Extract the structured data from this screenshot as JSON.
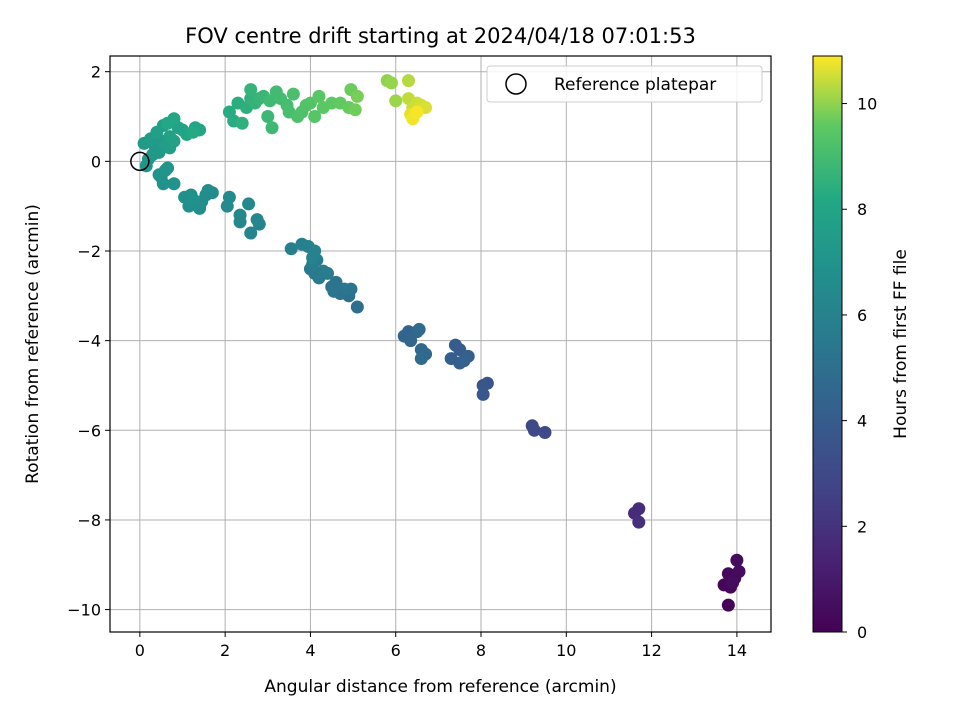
{
  "chart_data": {
    "type": "scatter",
    "title": "FOV centre drift starting at 2024/04/18 07:01:53",
    "xlabel": "Angular distance from reference (arcmin)",
    "ylabel": "Rotation from reference (arcmin)",
    "xlim": [
      -0.7,
      14.8
    ],
    "ylim": [
      -10.5,
      2.35
    ],
    "xticks": [
      0,
      2,
      4,
      6,
      8,
      10,
      12,
      14
    ],
    "yticks": [
      -10,
      -8,
      -6,
      -4,
      -2,
      0,
      2
    ],
    "xtick_labels": [
      "0",
      "2",
      "4",
      "6",
      "8",
      "10",
      "12",
      "14"
    ],
    "ytick_labels": [
      "−10",
      "−8",
      "−6",
      "−4",
      "−2",
      "0",
      "2"
    ],
    "grid": true,
    "colormap": "viridis",
    "colorbar": {
      "label": "Hours from first FF file",
      "range": [
        0,
        10.9
      ],
      "ticks": [
        0,
        2,
        4,
        6,
        8,
        10
      ],
      "tick_labels": [
        "0",
        "2",
        "4",
        "6",
        "8",
        "10"
      ]
    },
    "legend": {
      "position": "top-right",
      "entries": [
        "Reference platepar"
      ]
    },
    "reference_point": {
      "x": 0,
      "y": 0
    },
    "points": [
      {
        "x": 13.8,
        "y": -9.9,
        "t": 0.1
      },
      {
        "x": 13.7,
        "y": -9.45,
        "t": 0.2
      },
      {
        "x": 13.85,
        "y": -9.5,
        "t": 0.25
      },
      {
        "x": 13.8,
        "y": -9.2,
        "t": 0.3
      },
      {
        "x": 13.95,
        "y": -9.3,
        "t": 0.35
      },
      {
        "x": 14.0,
        "y": -8.9,
        "t": 0.4
      },
      {
        "x": 14.05,
        "y": -9.15,
        "t": 0.45
      },
      {
        "x": 13.9,
        "y": -9.4,
        "t": 0.5
      },
      {
        "x": 11.6,
        "y": -7.85,
        "t": 1.7
      },
      {
        "x": 11.7,
        "y": -7.75,
        "t": 1.8
      },
      {
        "x": 11.7,
        "y": -8.05,
        "t": 1.9
      },
      {
        "x": 9.2,
        "y": -5.9,
        "t": 3.0
      },
      {
        "x": 9.25,
        "y": -6.0,
        "t": 3.05
      },
      {
        "x": 9.5,
        "y": -6.05,
        "t": 3.1
      },
      {
        "x": 8.05,
        "y": -5.0,
        "t": 3.6
      },
      {
        "x": 8.15,
        "y": -4.95,
        "t": 3.65
      },
      {
        "x": 8.05,
        "y": -5.2,
        "t": 3.7
      },
      {
        "x": 7.4,
        "y": -4.1,
        "t": 4.0
      },
      {
        "x": 7.5,
        "y": -4.2,
        "t": 4.05
      },
      {
        "x": 7.3,
        "y": -4.4,
        "t": 4.1
      },
      {
        "x": 7.5,
        "y": -4.5,
        "t": 4.15
      },
      {
        "x": 7.7,
        "y": -4.35,
        "t": 4.2
      },
      {
        "x": 7.6,
        "y": -4.45,
        "t": 4.25
      },
      {
        "x": 6.3,
        "y": -3.8,
        "t": 4.4
      },
      {
        "x": 6.2,
        "y": -3.9,
        "t": 4.45
      },
      {
        "x": 6.35,
        "y": -4.0,
        "t": 4.5
      },
      {
        "x": 6.5,
        "y": -3.8,
        "t": 4.55
      },
      {
        "x": 6.6,
        "y": -4.2,
        "t": 4.6
      },
      {
        "x": 6.7,
        "y": -4.3,
        "t": 4.65
      },
      {
        "x": 6.6,
        "y": -4.4,
        "t": 4.7
      },
      {
        "x": 6.55,
        "y": -3.75,
        "t": 4.75
      },
      {
        "x": 5.1,
        "y": -3.25,
        "t": 5.0
      },
      {
        "x": 4.9,
        "y": -3.0,
        "t": 5.05
      },
      {
        "x": 4.7,
        "y": -2.95,
        "t": 5.1
      },
      {
        "x": 4.5,
        "y": -2.8,
        "t": 5.15
      },
      {
        "x": 4.6,
        "y": -2.7,
        "t": 5.2
      },
      {
        "x": 4.95,
        "y": -2.85,
        "t": 5.25
      },
      {
        "x": 4.8,
        "y": -2.85,
        "t": 5.3
      },
      {
        "x": 4.55,
        "y": -2.9,
        "t": 5.35
      },
      {
        "x": 4.1,
        "y": -2.5,
        "t": 5.45
      },
      {
        "x": 4.0,
        "y": -2.4,
        "t": 5.5
      },
      {
        "x": 4.2,
        "y": -2.6,
        "t": 5.55
      },
      {
        "x": 4.3,
        "y": -2.45,
        "t": 5.6
      },
      {
        "x": 4.15,
        "y": -2.2,
        "t": 5.65
      },
      {
        "x": 4.4,
        "y": -2.5,
        "t": 5.7
      },
      {
        "x": 4.05,
        "y": -2.3,
        "t": 5.75
      },
      {
        "x": 3.55,
        "y": -1.95,
        "t": 5.85
      },
      {
        "x": 3.8,
        "y": -1.85,
        "t": 5.9
      },
      {
        "x": 3.95,
        "y": -1.9,
        "t": 5.95
      },
      {
        "x": 4.1,
        "y": -2.0,
        "t": 6.0
      },
      {
        "x": 4.05,
        "y": -2.15,
        "t": 6.05
      },
      {
        "x": 2.6,
        "y": -1.6,
        "t": 6.15
      },
      {
        "x": 2.8,
        "y": -1.4,
        "t": 6.2
      },
      {
        "x": 2.75,
        "y": -1.3,
        "t": 6.25
      },
      {
        "x": 2.35,
        "y": -1.35,
        "t": 6.3
      },
      {
        "x": 2.35,
        "y": -1.2,
        "t": 6.35
      },
      {
        "x": 2.55,
        "y": -0.95,
        "t": 6.4
      },
      {
        "x": 2.05,
        "y": -1.0,
        "t": 6.45
      },
      {
        "x": 2.1,
        "y": -0.8,
        "t": 6.5
      },
      {
        "x": 1.7,
        "y": -0.7,
        "t": 6.55
      },
      {
        "x": 1.6,
        "y": -0.65,
        "t": 6.6
      },
      {
        "x": 1.55,
        "y": -0.75,
        "t": 6.65
      },
      {
        "x": 1.4,
        "y": -1.05,
        "t": 6.7
      },
      {
        "x": 1.45,
        "y": -0.9,
        "t": 6.72
      },
      {
        "x": 1.3,
        "y": -0.95,
        "t": 6.75
      },
      {
        "x": 1.15,
        "y": -1.0,
        "t": 6.78
      },
      {
        "x": 1.2,
        "y": -0.75,
        "t": 6.8
      },
      {
        "x": 1.05,
        "y": -0.8,
        "t": 6.83
      },
      {
        "x": 1.25,
        "y": -0.85,
        "t": 6.86
      },
      {
        "x": 0.8,
        "y": -0.5,
        "t": 6.9
      },
      {
        "x": 0.55,
        "y": -0.5,
        "t": 6.93
      },
      {
        "x": 0.5,
        "y": -0.35,
        "t": 6.96
      },
      {
        "x": 0.45,
        "y": -0.3,
        "t": 7.0
      },
      {
        "x": 0.6,
        "y": -0.2,
        "t": 7.05
      },
      {
        "x": 0.65,
        "y": -0.15,
        "t": 7.1
      },
      {
        "x": 0.15,
        "y": -0.1,
        "t": 7.15
      },
      {
        "x": 0.2,
        "y": 0.05,
        "t": 7.2
      },
      {
        "x": 0.3,
        "y": 0.15,
        "t": 7.25
      },
      {
        "x": 0.45,
        "y": 0.2,
        "t": 7.3
      },
      {
        "x": 0.35,
        "y": 0.35,
        "t": 7.35
      },
      {
        "x": 0.5,
        "y": 0.45,
        "t": 7.4
      },
      {
        "x": 0.1,
        "y": 0.4,
        "t": 7.45
      },
      {
        "x": 0.25,
        "y": 0.5,
        "t": 7.5
      },
      {
        "x": 0.6,
        "y": 0.35,
        "t": 7.55
      },
      {
        "x": 0.7,
        "y": 0.3,
        "t": 7.6
      },
      {
        "x": 0.4,
        "y": 0.65,
        "t": 7.65
      },
      {
        "x": 0.55,
        "y": 0.8,
        "t": 7.7
      },
      {
        "x": 0.7,
        "y": 0.55,
        "t": 7.75
      },
      {
        "x": 0.8,
        "y": 0.45,
        "t": 7.8
      },
      {
        "x": 0.9,
        "y": 0.75,
        "t": 7.85
      },
      {
        "x": 1.0,
        "y": 0.7,
        "t": 7.9
      },
      {
        "x": 1.1,
        "y": 0.6,
        "t": 7.95
      },
      {
        "x": 1.3,
        "y": 0.75,
        "t": 8.0
      },
      {
        "x": 1.4,
        "y": 0.7,
        "t": 8.05
      },
      {
        "x": 0.8,
        "y": 0.95,
        "t": 8.1
      },
      {
        "x": 0.65,
        "y": 0.85,
        "t": 8.15
      },
      {
        "x": 1.25,
        "y": 0.65,
        "t": 8.2
      },
      {
        "x": 2.1,
        "y": 1.1,
        "t": 8.3
      },
      {
        "x": 2.2,
        "y": 0.9,
        "t": 8.35
      },
      {
        "x": 2.3,
        "y": 1.3,
        "t": 8.4
      },
      {
        "x": 2.5,
        "y": 1.2,
        "t": 8.45
      },
      {
        "x": 2.4,
        "y": 0.85,
        "t": 8.5
      },
      {
        "x": 2.6,
        "y": 1.4,
        "t": 8.55
      },
      {
        "x": 2.7,
        "y": 1.3,
        "t": 8.6
      },
      {
        "x": 2.6,
        "y": 1.6,
        "t": 8.65
      },
      {
        "x": 2.8,
        "y": 1.4,
        "t": 8.7
      },
      {
        "x": 2.9,
        "y": 1.45,
        "t": 8.75
      },
      {
        "x": 3.0,
        "y": 1.0,
        "t": 8.8
      },
      {
        "x": 3.1,
        "y": 0.75,
        "t": 8.85
      },
      {
        "x": 3.05,
        "y": 1.35,
        "t": 8.9
      },
      {
        "x": 3.2,
        "y": 1.55,
        "t": 8.95
      },
      {
        "x": 3.3,
        "y": 1.4,
        "t": 9.0
      },
      {
        "x": 3.45,
        "y": 1.25,
        "t": 9.05
      },
      {
        "x": 3.5,
        "y": 1.1,
        "t": 9.1
      },
      {
        "x": 3.6,
        "y": 1.5,
        "t": 9.15
      },
      {
        "x": 3.7,
        "y": 1.0,
        "t": 9.2
      },
      {
        "x": 3.8,
        "y": 1.1,
        "t": 9.25
      },
      {
        "x": 3.9,
        "y": 1.25,
        "t": 9.3
      },
      {
        "x": 4.0,
        "y": 1.3,
        "t": 9.35
      },
      {
        "x": 4.1,
        "y": 1.0,
        "t": 9.4
      },
      {
        "x": 4.2,
        "y": 1.45,
        "t": 9.45
      },
      {
        "x": 4.3,
        "y": 1.2,
        "t": 9.5
      },
      {
        "x": 4.5,
        "y": 1.3,
        "t": 9.55
      },
      {
        "x": 4.7,
        "y": 1.3,
        "t": 9.6
      },
      {
        "x": 4.9,
        "y": 1.2,
        "t": 9.65
      },
      {
        "x": 4.95,
        "y": 1.6,
        "t": 9.7
      },
      {
        "x": 5.05,
        "y": 1.15,
        "t": 9.75
      },
      {
        "x": 5.1,
        "y": 1.45,
        "t": 9.8
      },
      {
        "x": 5.8,
        "y": 1.8,
        "t": 10.0
      },
      {
        "x": 5.9,
        "y": 1.75,
        "t": 10.05
      },
      {
        "x": 6.0,
        "y": 1.35,
        "t": 10.1
      },
      {
        "x": 6.3,
        "y": 1.8,
        "t": 10.3
      },
      {
        "x": 6.3,
        "y": 1.4,
        "t": 10.4
      },
      {
        "x": 6.4,
        "y": 1.2,
        "t": 10.45
      },
      {
        "x": 6.5,
        "y": 1.3,
        "t": 10.5
      },
      {
        "x": 6.6,
        "y": 1.25,
        "t": 10.55
      },
      {
        "x": 6.7,
        "y": 1.2,
        "t": 10.6
      },
      {
        "x": 6.35,
        "y": 1.05,
        "t": 10.7
      },
      {
        "x": 6.4,
        "y": 0.95,
        "t": 10.8
      },
      {
        "x": 6.5,
        "y": 1.1,
        "t": 10.85
      }
    ]
  }
}
